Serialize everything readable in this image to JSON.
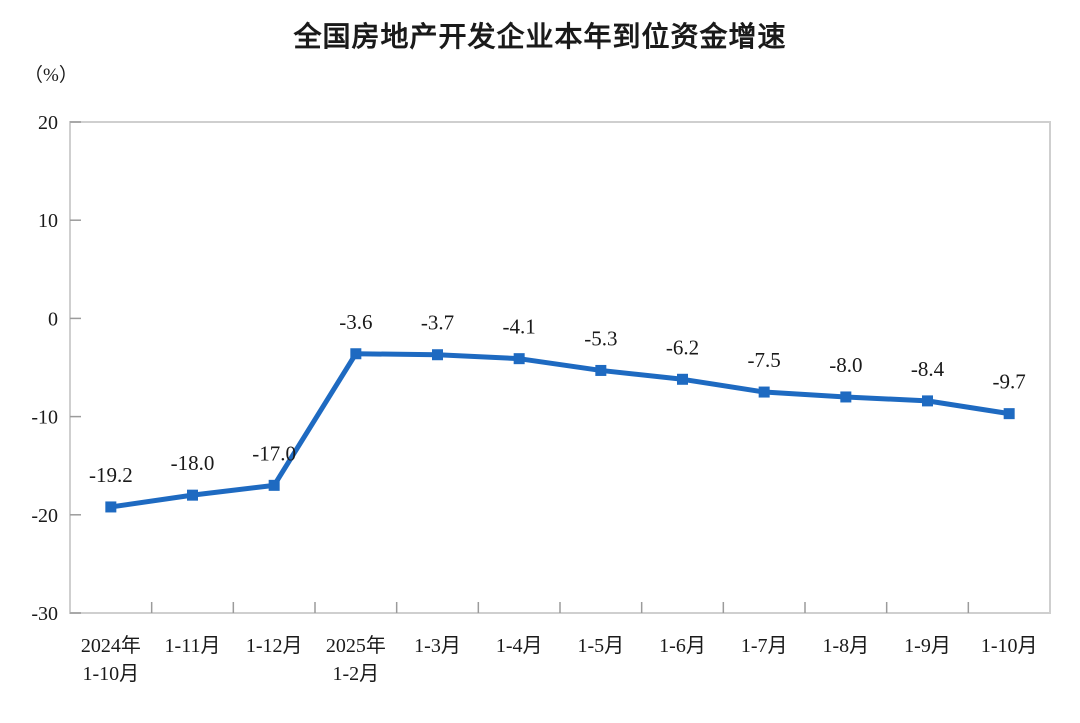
{
  "chart_data": {
    "type": "line",
    "title": "全国房地产开发企业本年到位资金增速",
    "unit_label": "（%）",
    "categories": [
      "2024年\n1-10月",
      "1-11月",
      "1-12月",
      "2025年\n1-2月",
      "1-3月",
      "1-4月",
      "1-5月",
      "1-6月",
      "1-7月",
      "1-8月",
      "1-9月",
      "1-10月"
    ],
    "values": [
      -19.2,
      -18.0,
      -17.0,
      -3.6,
      -3.7,
      -4.1,
      -5.3,
      -6.2,
      -7.5,
      -8.0,
      -8.4,
      -9.7
    ],
    "data_labels": [
      "-19.2",
      "-18.0",
      "-17.0",
      "-3.6",
      "-3.7",
      "-4.1",
      "-5.3",
      "-6.2",
      "-7.5",
      "-8.0",
      "-8.4",
      "-9.7"
    ],
    "xlabel": "",
    "ylabel": "（%）",
    "y_ticks": [
      20,
      10,
      0,
      -10,
      -20,
      -30
    ],
    "ylim": [
      -30,
      20
    ],
    "grid": false,
    "legend": "none",
    "marker": "square",
    "line_color": "#1e6ac1",
    "axis_color": "#cfcfcf",
    "tick_color": "#9b9b9b",
    "text_color": "#1a1a1a"
  }
}
